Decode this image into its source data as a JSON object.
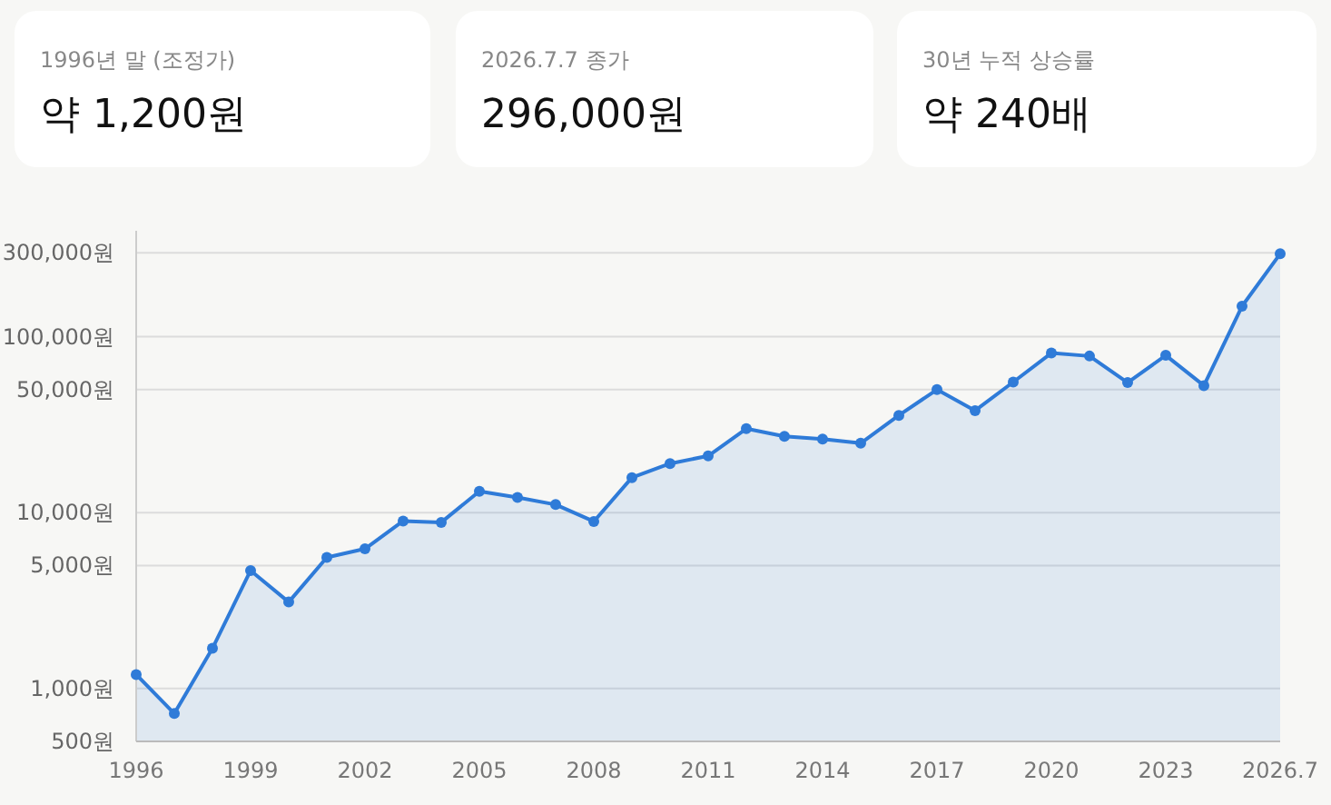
{
  "chart_data": [
    {
      "type": "other",
      "title": "1996년 말 (조정가)",
      "annotations": [
        "약 1,200원"
      ]
    },
    {
      "type": "other",
      "title": "2026.7.7 종가",
      "annotations": [
        "296,000원"
      ]
    },
    {
      "type": "other",
      "title": "30년 누적 상승률",
      "annotations": [
        "약 240배"
      ]
    },
    {
      "type": "area",
      "log": true,
      "grid": "y",
      "marker": "circle",
      "line_style": "solid",
      "color": "#2f7bd8",
      "categories": [
        "1996",
        null,
        null,
        "1999",
        null,
        null,
        "2002",
        null,
        null,
        "2005",
        null,
        null,
        "2008",
        null,
        null,
        "2011",
        null,
        null,
        "2014",
        null,
        null,
        "2017",
        null,
        null,
        "2020",
        null,
        null,
        "2023",
        null,
        null,
        "2026.7"
      ],
      "values": [
        1200,
        720,
        1690,
        4680,
        3100,
        5560,
        6220,
        8950,
        8800,
        13200,
        12200,
        11100,
        8900,
        15800,
        19000,
        21000,
        30000,
        27100,
        26200,
        24800,
        35700,
        50000,
        38000,
        55200,
        80700,
        77600,
        54800,
        78300,
        52700,
        149000,
        296000
      ],
      "ylim": [
        500,
        400000
      ],
      "yticks": [
        {
          "value": 500,
          "label": "500원"
        },
        {
          "value": 1000,
          "label": "1,000원"
        },
        {
          "value": 5000,
          "label": "5,000원"
        },
        {
          "value": 10000,
          "label": "10,000원"
        },
        {
          "value": 50000,
          "label": "50,000원"
        },
        {
          "value": 100000,
          "label": "100,000원"
        },
        {
          "value": 300000,
          "label": "300,000원"
        }
      ]
    }
  ]
}
